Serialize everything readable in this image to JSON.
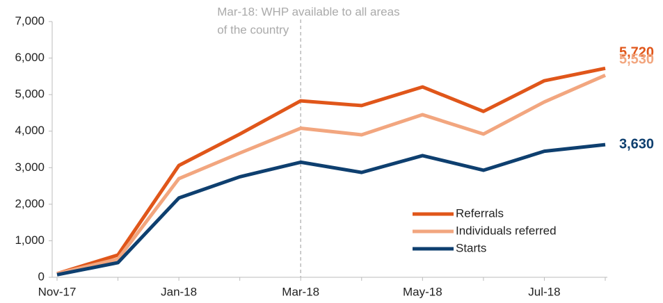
{
  "chart_data": {
    "type": "line",
    "categories": [
      "Nov-17",
      null,
      "Jan-18",
      null,
      "Mar-18",
      null,
      "May-18",
      null,
      "Jul-18",
      null
    ],
    "series": [
      {
        "name": "Referrals",
        "color": "#e0561a",
        "values": [
          100,
          610,
          3060,
          3920,
          4830,
          4700,
          5210,
          4540,
          5380,
          5720
        ],
        "value_labels": [
          null,
          null,
          null,
          null,
          null,
          null,
          null,
          null,
          null,
          "5,720"
        ]
      },
      {
        "name": "Individuals referred",
        "color": "#f2a67f",
        "values": [
          100,
          500,
          2700,
          3400,
          4080,
          3900,
          4450,
          3920,
          4800,
          5530
        ],
        "value_labels": [
          null,
          null,
          null,
          null,
          null,
          null,
          null,
          null,
          null,
          "5,530"
        ]
      },
      {
        "name": "Starts",
        "color": "#0e3f6f",
        "values": [
          70,
          400,
          2170,
          2750,
          3150,
          2870,
          3330,
          2930,
          3450,
          3630
        ],
        "value_labels": [
          null,
          null,
          null,
          null,
          null,
          null,
          null,
          null,
          null,
          "3,630"
        ]
      }
    ],
    "ylim": [
      0,
      7000
    ],
    "yticks": [
      0,
      {
        "value": 1000,
        "label": "1,000"
      },
      {
        "value": 2000,
        "label": "2,000"
      },
      {
        "value": 3000,
        "label": "3,000"
      },
      {
        "value": 4000,
        "label": "4,000"
      },
      {
        "value": 5000,
        "label": "5,000"
      },
      {
        "value": 6000,
        "label": "6,000"
      },
      {
        "value": 7000,
        "label": "7,000"
      }
    ],
    "annotation": {
      "lines": [
        "Mar-18: WHP available to all areas",
        "of the country"
      ],
      "x": "Mar-18"
    },
    "legend": "lower right"
  }
}
